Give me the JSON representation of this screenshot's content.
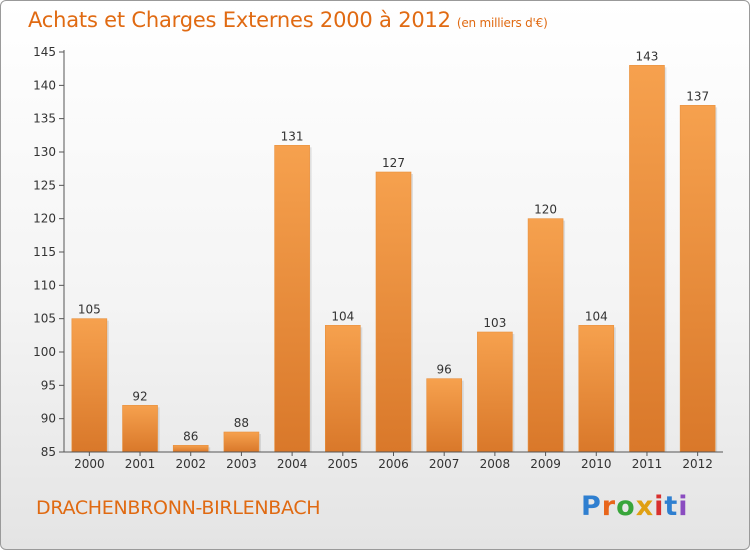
{
  "title": "Achats et Charges Externes 2000 à 2012",
  "subtitle": "(en milliers d'€)",
  "commune": "DRACHENBRONN-BIRLENBACH",
  "logo": {
    "text": "Proxiti",
    "letters": [
      "P",
      "r",
      "o",
      "x",
      "i",
      "t",
      "i"
    ]
  },
  "colors": {
    "accent": "#e06a12",
    "bar_light": "#f6a14e",
    "bar_dark": "#d9782a",
    "axis": "#555555",
    "grid": "#dddddd"
  },
  "chart_data": {
    "type": "bar",
    "title": "Achats et Charges Externes 2000 à 2012",
    "subtitle": "(en milliers d'€)",
    "categories": [
      "2000",
      "2001",
      "2002",
      "2003",
      "2004",
      "2005",
      "2006",
      "2007",
      "2008",
      "2009",
      "2010",
      "2011",
      "2012"
    ],
    "values": [
      105,
      92,
      86,
      88,
      131,
      104,
      127,
      96,
      103,
      120,
      104,
      143,
      137
    ],
    "data_labels": [
      "105",
      "92",
      "86",
      "88",
      "131",
      "104",
      "127",
      "96",
      "103",
      "120",
      "104",
      "143",
      "137"
    ],
    "ylim": [
      85,
      145
    ],
    "yticks": [
      85,
      90,
      95,
      100,
      105,
      110,
      115,
      120,
      125,
      130,
      135,
      140,
      145
    ],
    "xlabel": "",
    "ylabel": "",
    "grid": false,
    "legend": "none"
  }
}
